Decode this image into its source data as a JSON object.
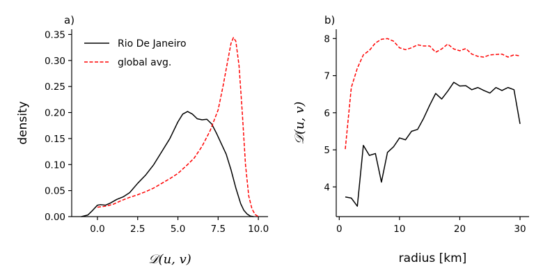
{
  "chart_data": [
    {
      "panel_label": "a)",
      "type": "line",
      "xlabel": "𝒟(u, v)",
      "ylabel": "density",
      "xlim": [
        -1.6,
        10.6
      ],
      "ylim": [
        0,
        0.36
      ],
      "xticks": [
        0.0,
        2.5,
        5.0,
        7.5,
        10.0
      ],
      "xtick_labels": [
        "0.0",
        "2.5",
        "5.0",
        "7.5",
        "10.0"
      ],
      "yticks": [
        0.0,
        0.05,
        0.1,
        0.15,
        0.2,
        0.25,
        0.3,
        0.35
      ],
      "ytick_labels": [
        "0.00",
        "0.05",
        "0.10",
        "0.15",
        "0.20",
        "0.25",
        "0.30",
        "0.35"
      ],
      "legend": "top-left",
      "grid": false,
      "series": [
        {
          "name": "Rio De Janeiro",
          "color": "#000000",
          "dash": "solid",
          "x": [
            -1.0,
            -0.6,
            -0.3,
            0.0,
            0.2,
            0.5,
            0.8,
            1.2,
            1.6,
            2.0,
            2.5,
            3.0,
            3.5,
            4.0,
            4.5,
            5.0,
            5.3,
            5.6,
            5.9,
            6.2,
            6.5,
            6.8,
            7.1,
            7.4,
            7.7,
            8.0,
            8.3,
            8.6,
            8.9,
            9.1,
            9.3,
            9.5,
            9.7
          ],
          "y": [
            0.0,
            0.003,
            0.012,
            0.022,
            0.023,
            0.022,
            0.026,
            0.033,
            0.038,
            0.046,
            0.064,
            0.08,
            0.1,
            0.125,
            0.15,
            0.182,
            0.197,
            0.202,
            0.197,
            0.188,
            0.186,
            0.187,
            0.178,
            0.16,
            0.14,
            0.12,
            0.09,
            0.055,
            0.025,
            0.012,
            0.005,
            0.001,
            0.0
          ]
        },
        {
          "name": "global avg.",
          "color": "#ff0000",
          "dash": "dashed",
          "x": [
            0.0,
            0.5,
            1.0,
            1.5,
            2.0,
            2.5,
            3.0,
            3.5,
            4.0,
            4.5,
            5.0,
            5.5,
            6.0,
            6.5,
            7.0,
            7.5,
            7.8,
            8.1,
            8.3,
            8.45,
            8.6,
            8.8,
            9.0,
            9.2,
            9.4,
            9.6,
            9.8,
            10.0
          ],
          "y": [
            0.018,
            0.02,
            0.024,
            0.031,
            0.037,
            0.042,
            0.048,
            0.055,
            0.064,
            0.073,
            0.083,
            0.097,
            0.112,
            0.135,
            0.165,
            0.205,
            0.25,
            0.3,
            0.333,
            0.344,
            0.337,
            0.29,
            0.2,
            0.1,
            0.04,
            0.015,
            0.004,
            0.0
          ]
        }
      ]
    },
    {
      "panel_label": "b)",
      "type": "line",
      "xlabel": "radius [km]",
      "ylabel": "𝒟(u, v)",
      "xlim": [
        -0.5,
        31.5
      ],
      "ylim": [
        3.2,
        8.25
      ],
      "xticks": [
        0,
        10,
        20,
        30
      ],
      "xtick_labels": [
        "0",
        "10",
        "20",
        "30"
      ],
      "yticks": [
        4,
        5,
        6,
        7,
        8
      ],
      "ytick_labels": [
        "4",
        "5",
        "6",
        "7",
        "8"
      ],
      "grid": false,
      "series": [
        {
          "color": "#000000",
          "dash": "solid",
          "x": [
            1,
            2,
            3,
            4,
            5,
            6,
            7,
            8,
            9,
            10,
            11,
            12,
            13,
            14,
            15,
            16,
            17,
            18,
            19,
            20,
            21,
            22,
            23,
            24,
            25,
            26,
            27,
            28,
            29,
            30
          ],
          "y": [
            3.73,
            3.7,
            3.48,
            5.12,
            4.85,
            4.9,
            4.13,
            4.93,
            5.08,
            5.32,
            5.27,
            5.5,
            5.55,
            5.85,
            6.2,
            6.52,
            6.37,
            6.58,
            6.82,
            6.72,
            6.73,
            6.62,
            6.68,
            6.6,
            6.53,
            6.68,
            6.6,
            6.68,
            6.62,
            5.7
          ]
        },
        {
          "color": "#ff0000",
          "dash": "dashed",
          "x": [
            1,
            2,
            3,
            4,
            5,
            6,
            7,
            8,
            9,
            10,
            11,
            12,
            13,
            14,
            15,
            16,
            17,
            18,
            19,
            20,
            21,
            22,
            23,
            24,
            25,
            26,
            27,
            28,
            29,
            30
          ],
          "y": [
            5.02,
            6.68,
            7.2,
            7.56,
            7.68,
            7.88,
            7.98,
            8.0,
            7.93,
            7.75,
            7.7,
            7.75,
            7.83,
            7.8,
            7.8,
            7.63,
            7.72,
            7.85,
            7.72,
            7.67,
            7.73,
            7.58,
            7.52,
            7.5,
            7.56,
            7.57,
            7.58,
            7.5,
            7.56,
            7.53
          ]
        }
      ]
    }
  ]
}
